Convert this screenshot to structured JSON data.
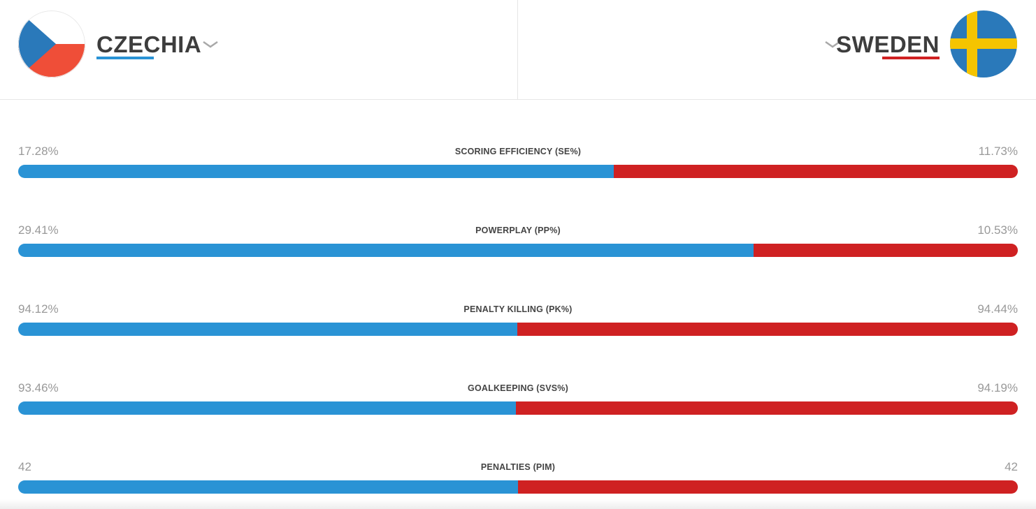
{
  "colors": {
    "left_team": "#2a93d5",
    "right_team": "#cf2122"
  },
  "left_team": {
    "name": "CZECHIA",
    "flag_icon": "czech-flag-icon",
    "dropdown_icon": "chevron-down-icon"
  },
  "right_team": {
    "name": "SWEDEN",
    "flag_icon": "sweden-flag-icon",
    "dropdown_icon": "chevron-down-icon"
  },
  "stats": [
    {
      "label": "SCORING EFFICIENCY (SE%)",
      "left": "17.28%",
      "right": "11.73%",
      "left_share": 0.596
    },
    {
      "label": "POWERPLAY (PP%)",
      "left": "29.41%",
      "right": "10.53%",
      "left_share": 0.736
    },
    {
      "label": "PENALTY KILLING (PK%)",
      "left": "94.12%",
      "right": "94.44%",
      "left_share": 0.499
    },
    {
      "label": "GOALKEEPING (SVS%)",
      "left": "93.46%",
      "right": "94.19%",
      "left_share": 0.498
    },
    {
      "label": "PENALTIES (PIM)",
      "left": "42",
      "right": "42",
      "left_share": 0.5
    }
  ]
}
